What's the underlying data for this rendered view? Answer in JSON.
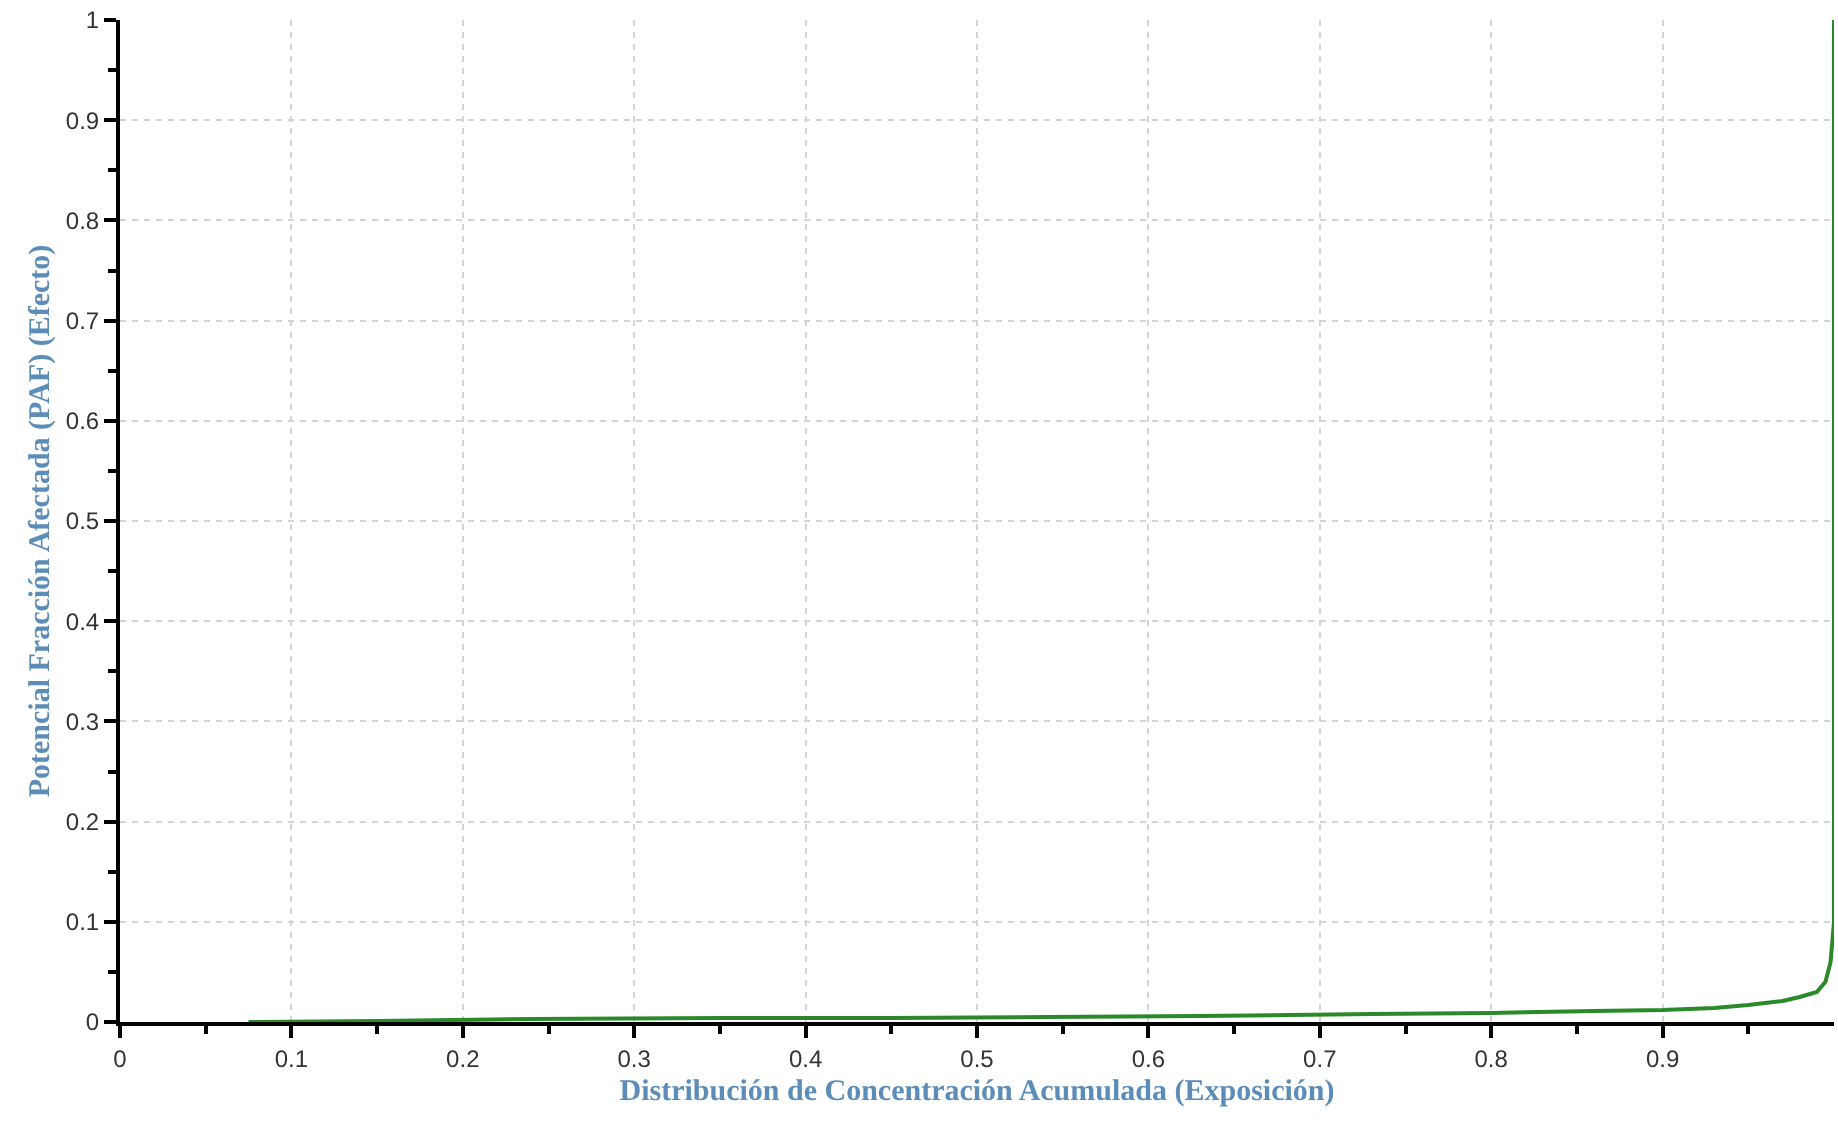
{
  "chart_data": {
    "type": "line",
    "xlabel": "Distribución de Concentración Acumulada (Exposición)",
    "ylabel": "Potencial Fracción Afectada (PAF) (Efecto)",
    "x": [
      0.075,
      0.15,
      0.24,
      0.35,
      0.45,
      0.54,
      0.63,
      0.73,
      0.8,
      0.86,
      0.9,
      0.93,
      0.95,
      0.97,
      0.98,
      0.99,
      0.995,
      0.998,
      1.0,
      1.0
    ],
    "series": [
      {
        "color": "#2a8a2a",
        "values": [
          0,
          0.001,
          0.003,
          0.004,
          0.004,
          0.005,
          0.006,
          0.008,
          0.009,
          0.011,
          0.012,
          0.014,
          0.017,
          0.021,
          0.025,
          0.03,
          0.04,
          0.06,
          0.1,
          1.0
        ]
      }
    ],
    "xlim": [
      0,
      1
    ],
    "ylim": [
      0,
      1
    ],
    "xticks": [
      0,
      {
        "value": 0.05,
        "label": null
      },
      0.1,
      {
        "value": 0.15,
        "label": null
      },
      0.2,
      {
        "value": 0.25,
        "label": null
      },
      0.3,
      {
        "value": 0.35,
        "label": null
      },
      0.4,
      {
        "value": 0.45,
        "label": null
      },
      0.5,
      {
        "value": 0.55,
        "label": null
      },
      0.6,
      {
        "value": 0.65,
        "label": null
      },
      0.7,
      {
        "value": 0.75,
        "label": null
      },
      0.8,
      {
        "value": 0.85,
        "label": null
      },
      0.9,
      {
        "value": 0.95,
        "label": null
      }
    ],
    "yticks": [
      0,
      {
        "value": 0.05,
        "label": null
      },
      0.1,
      {
        "value": 0.15,
        "label": null
      },
      0.2,
      {
        "value": 0.25,
        "label": null
      },
      0.3,
      {
        "value": 0.35,
        "label": null
      },
      0.4,
      {
        "value": 0.45,
        "label": null
      },
      0.5,
      {
        "value": 0.55,
        "label": null
      },
      0.6,
      {
        "value": 0.65,
        "label": null
      },
      0.7,
      {
        "value": 0.75,
        "label": null
      },
      0.8,
      {
        "value": 0.85,
        "label": null
      },
      0.9,
      {
        "value": 0.95,
        "label": null
      },
      1
    ],
    "grid": true,
    "marker": "none",
    "line_style": "solid"
  }
}
